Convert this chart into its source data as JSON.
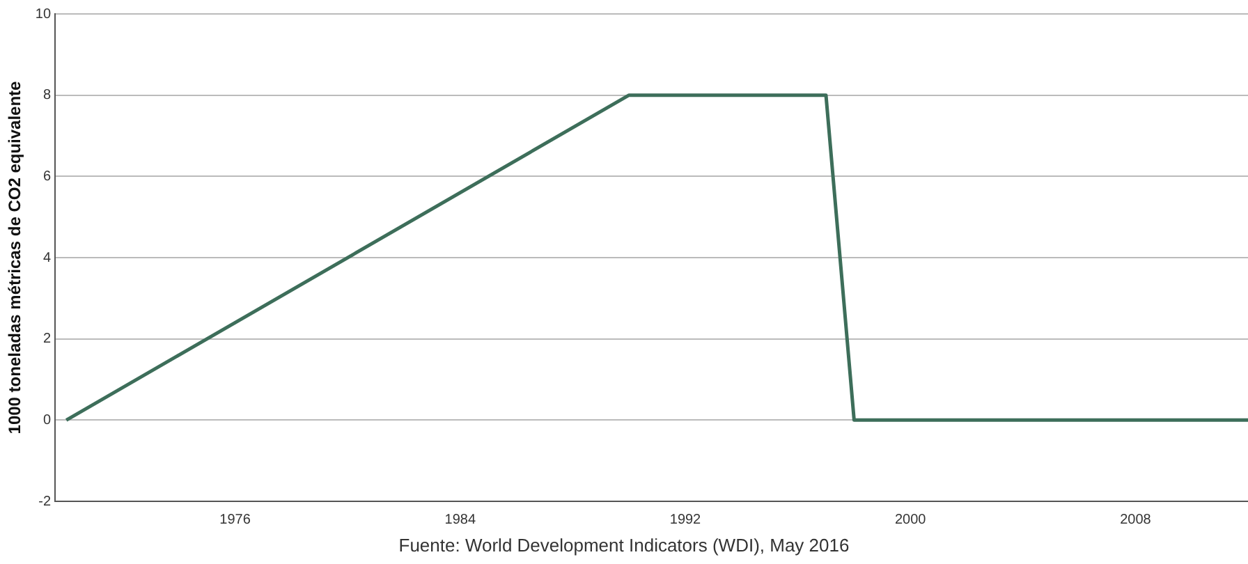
{
  "chart_data": {
    "type": "line",
    "ylabel": "1000 toneladas métricas de CO2 equivalente",
    "x": [
      1970,
      1990,
      1997,
      1998,
      2012
    ],
    "series": [
      {
        "color": "#3d6e5a",
        "values": [
          0,
          8,
          8,
          0,
          0
        ]
      }
    ],
    "xlim": [
      1969.6,
      2012
    ],
    "xticks": [
      1976,
      1984,
      1992,
      2000,
      2008
    ],
    "ylim": [
      -2,
      10
    ],
    "yticks": [
      -2,
      0,
      2,
      4,
      6,
      8,
      10
    ],
    "grid": "y",
    "legend": false,
    "marker": "none",
    "line_style": "solid",
    "annotations": [
      "Fuente: World Development Indicators (WDI), May 2016"
    ]
  }
}
